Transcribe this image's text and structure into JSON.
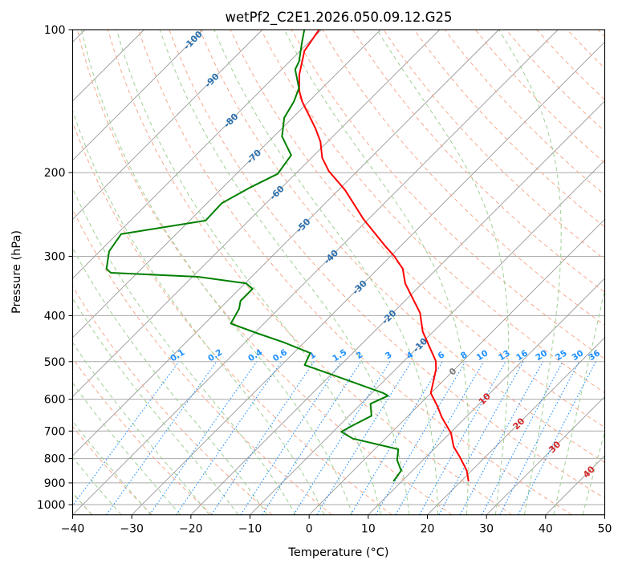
{
  "chart_data": {
    "type": "line",
    "subtype": "skew-t log-p diagram",
    "title": "wetPf2_C2E1.2026.050.09.12.G25",
    "xlabel": "Temperature (°C)",
    "ylabel": "Pressure (hPa)",
    "xlim": [
      -40,
      50
    ],
    "ylim_hPa": [
      1050,
      100
    ],
    "yscale": "log",
    "x_ticks": [
      "−40",
      "−30",
      "−20",
      "−10",
      "0",
      "10",
      "20",
      "30",
      "40",
      "50"
    ],
    "x_tick_values": [
      -40,
      -30,
      -20,
      -10,
      0,
      10,
      20,
      30,
      40,
      50
    ],
    "y_ticks": [
      "100",
      "200",
      "300",
      "400",
      "500",
      "600",
      "700",
      "800",
      "900",
      "1000"
    ],
    "y_tick_values": [
      100,
      200,
      300,
      400,
      500,
      600,
      700,
      800,
      900,
      1000
    ],
    "grid": true,
    "isotherm_labels": [
      "-100",
      "-90",
      "-80",
      "-70",
      "-60",
      "-50",
      "-40",
      "-30",
      "-20",
      "-10",
      "0",
      "10",
      "20",
      "30",
      "40"
    ],
    "isotherm_label_values": [
      -100,
      -90,
      -80,
      -70,
      -60,
      -50,
      -40,
      -30,
      -20,
      -10,
      0,
      10,
      20,
      30,
      40
    ],
    "mixing_ratio_labels": [
      "0.1",
      "0.2",
      "0.4",
      "0.6",
      "1",
      "1.5",
      "2",
      "3",
      "4",
      "6",
      "8",
      "10",
      "13",
      "16",
      "20",
      "25",
      "30",
      "36"
    ],
    "mixing_ratio_values_gkg": [
      0.1,
      0.2,
      0.4,
      0.6,
      1,
      1.5,
      2,
      3,
      4,
      6,
      8,
      10,
      13,
      16,
      20,
      25,
      30,
      36
    ],
    "colors": {
      "temperature": "#ff0000",
      "dewpoint": "#008000",
      "isotherm": "#999999",
      "dry_adiabat": "#f6a98c",
      "moist_adiabat": "#9fcf94",
      "mixing_ratio": "#1e90ff",
      "isotherm_label_cold": "#2a6fad",
      "isotherm_label_zero": "#808080",
      "isotherm_label_warm": "#d62728"
    },
    "series": [
      {
        "name": "temperature",
        "pressure": [
          100,
          110.8,
          124.5,
          134.5,
          141.7,
          161.4,
          172.2,
          186.1,
          198.6,
          217.5,
          250.7,
          285.5,
          300.6,
          318.7,
          342.2,
          394.8,
          432.1,
          498.5,
          518.3,
          582.5,
          621.5,
          654.4,
          707.3,
          755,
          795,
          848.3,
          893.4
        ],
        "values": [
          -80.4,
          -79.3,
          -76.1,
          -73.4,
          -71.1,
          -64.3,
          -61.2,
          -58.2,
          -54.8,
          -48.9,
          -40.8,
          -32.6,
          -29.2,
          -25.8,
          -22.9,
          -15.4,
          -11.8,
          -4.6,
          -3.2,
          0.0,
          3.4,
          5.9,
          10.2,
          12.9,
          15.8,
          19.2,
          21.3
        ]
      },
      {
        "name": "dewpoint",
        "pressure": [
          100,
          106.5,
          116.7,
          121.3,
          132.8,
          141.7,
          153.2,
          167.8,
          183.7,
          201.2,
          214.6,
          232,
          252.4,
          269.3,
          292.9,
          318.7,
          324.9,
          331.3,
          342.2,
          351.3,
          372.4,
          387.1,
          415.7,
          435,
          455.3,
          479.5,
          508.3,
          531.9,
          582.5,
          590,
          613.4,
          650.2,
          680.4,
          702.6,
          726.1,
          764.6,
          805.4,
          848.3,
          893.4
        ],
        "values": [
          -82.9,
          -81.1,
          -78.4,
          -77.7,
          -73.9,
          -72.5,
          -71.4,
          -68.6,
          -63.9,
          -63.0,
          -65.3,
          -67.5,
          -67.3,
          -79.3,
          -78.4,
          -75.9,
          -74.5,
          -59.1,
          -49.8,
          -47.8,
          -47.8,
          -46.7,
          -45.6,
          -39.7,
          -33.5,
          -27.2,
          -26.1,
          -20.0,
          -8.0,
          -6.8,
          -8.4,
          -6.2,
          -7.7,
          -8.6,
          -5.5,
          4.0,
          5.6,
          8.1,
          8.6
        ]
      }
    ]
  }
}
